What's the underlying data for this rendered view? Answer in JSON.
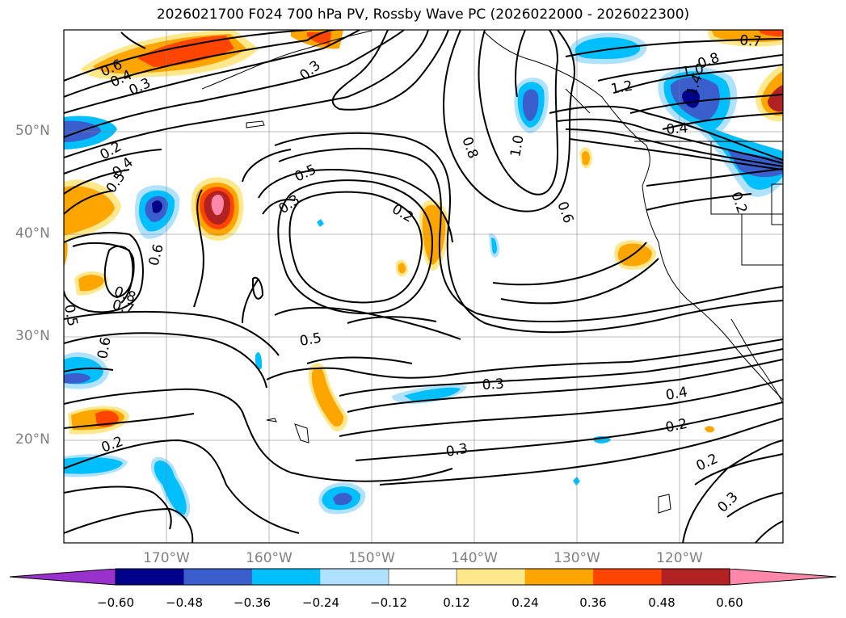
{
  "title": "2026021700 F024 700 hPa PV, Rossby Wave PC (2026022000 - 2026022300)",
  "lat_labels": [
    "50°N",
    "40°N",
    "30°N",
    "20°N"
  ],
  "lon_labels": [
    "170°W",
    "160°W",
    "150°W",
    "140°W",
    "130°W",
    "120°W"
  ],
  "colorbar": {
    "ticks": [
      "−0.60",
      "−0.48",
      "−0.36",
      "−0.24",
      "−0.12",
      "0.12",
      "0.24",
      "0.36",
      "0.48",
      "0.60"
    ],
    "colors": [
      "#9932cc",
      "#00008b",
      "#3a5fcd",
      "#00bfff",
      "#b0e2ff",
      "#ffffff",
      "#ffe78c",
      "#ffa500",
      "#ff4500",
      "#b22222",
      "#ff88aa"
    ]
  },
  "contour_labels": [
    "0.6",
    "0.4",
    "0.3",
    "0.2",
    "0.4",
    "0.5",
    "0.8",
    "0.7",
    "0.5",
    "0.6",
    "0.6",
    "0.2",
    "0.3",
    "0.5",
    "0.3",
    "0.2",
    "0.5",
    "0.8",
    "1.0",
    "0.6",
    "1.2",
    "1.0",
    "0.8",
    "1.4",
    "0.4",
    "0.2",
    "0.7",
    "0.3",
    "0.4",
    "0.2",
    "0.3",
    "0.2",
    "0.3"
  ]
}
